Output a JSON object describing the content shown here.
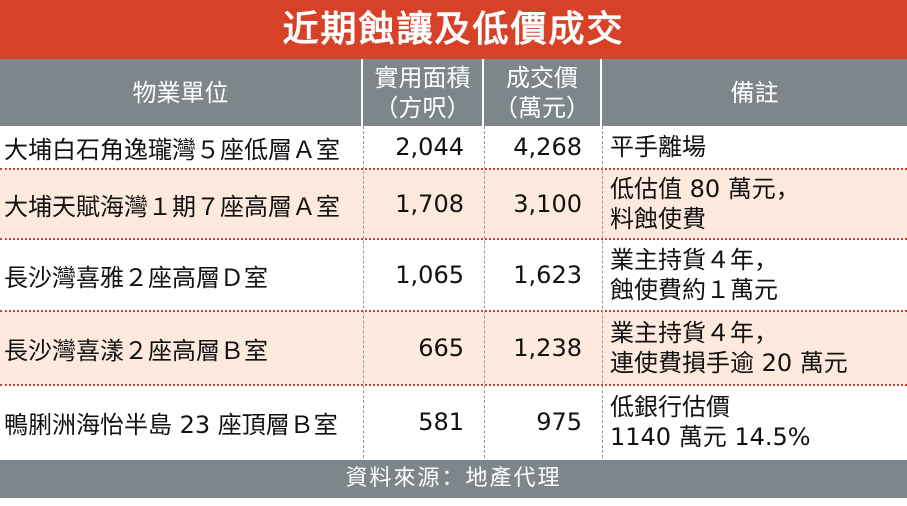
{
  "title": "近期蝕讓及低價成交",
  "headers": {
    "unit": "物業單位",
    "area_line1": "實用面積",
    "area_line2": "（方呎）",
    "price_line1": "成交價",
    "price_line2": "（萬元）",
    "note": "備註"
  },
  "rows": [
    {
      "unit": "大埔白石角逸瓏灣５座低層Ａ室",
      "area": "2,044",
      "price": "4,268",
      "note1": "平手離場",
      "note2": ""
    },
    {
      "unit": "大埔天賦海灣１期７座高層Ａ室",
      "area": "1,708",
      "price": "3,100",
      "note1": "低估值 80 萬元，",
      "note2": "料蝕使費"
    },
    {
      "unit": "長沙灣喜雅２座高層Ｄ室",
      "area": "1,065",
      "price": "1,623",
      "note1": "業主持貨４年，",
      "note2": "蝕使費約１萬元"
    },
    {
      "unit": "長沙灣喜漾２座高層Ｂ室",
      "area": "665",
      "price": "1,238",
      "note1": "業主持貨４年，",
      "note2": "連使費損手逾 20 萬元"
    },
    {
      "unit": "鴨脷洲海怡半島 23 座頂層Ｂ室",
      "area": "581",
      "price": "975",
      "note1": "低銀行估價",
      "note2": "1140 萬元 14.5%"
    }
  ],
  "footer": "資料來源：地產代理",
  "colors": {
    "title_bg": "#d64128",
    "header_bg": "#7d868a",
    "alt_row_bg": "#fde9dd"
  }
}
